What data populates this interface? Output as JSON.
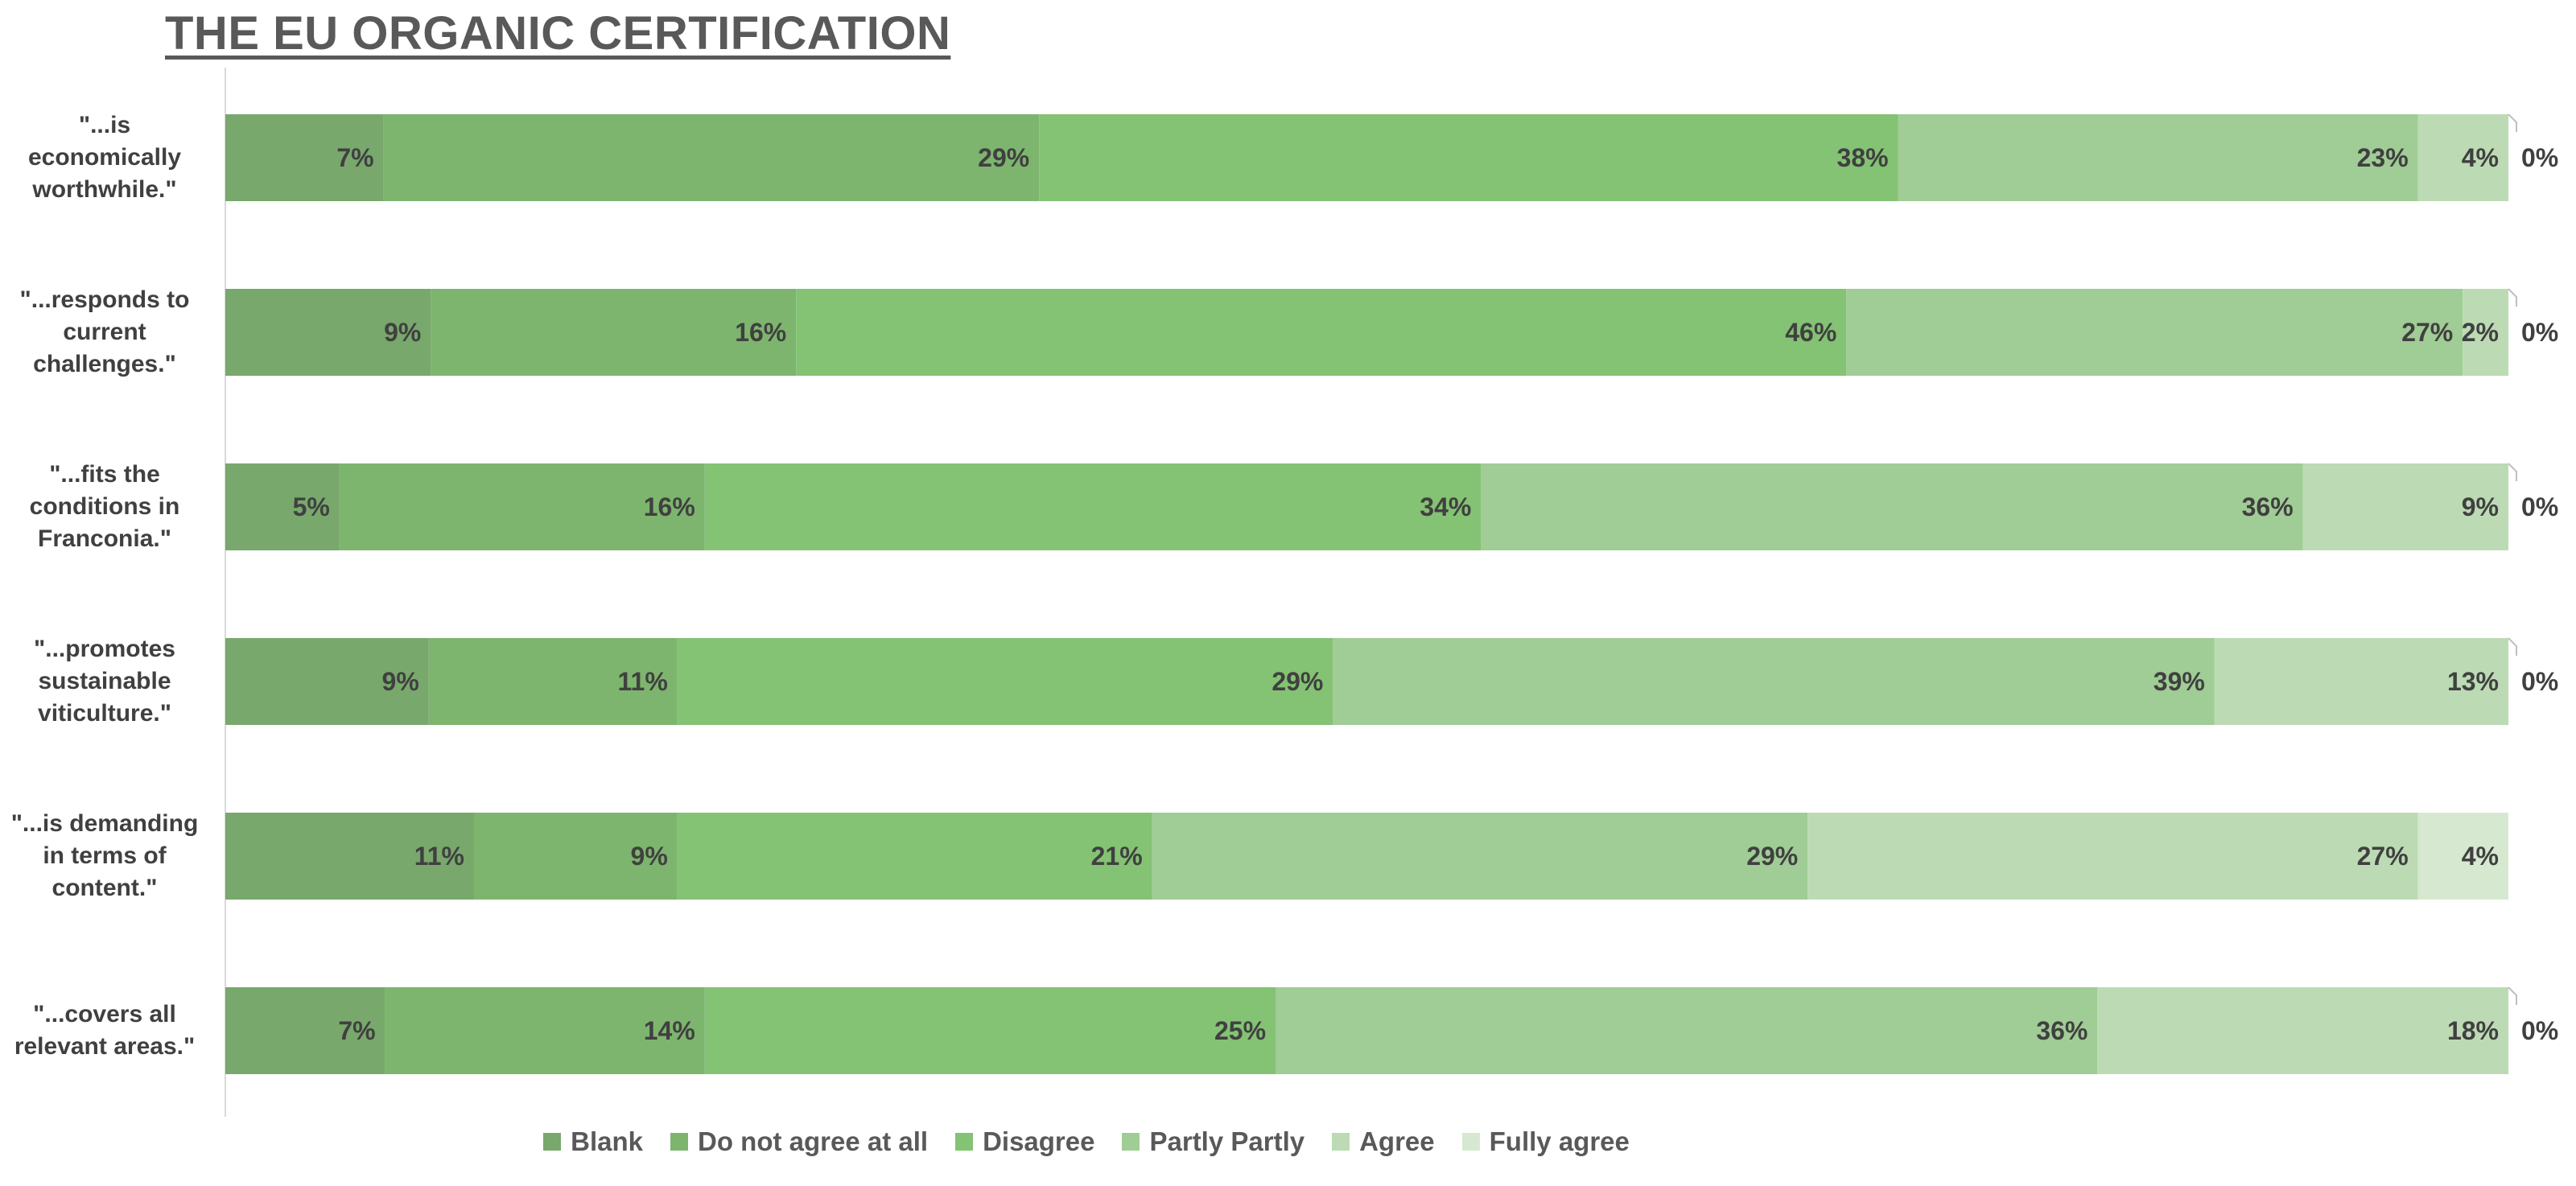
{
  "chart_data": {
    "type": "bar",
    "orientation": "horizontal",
    "stacked": "100%",
    "title": "THE EU ORGANIC CERTIFICATION",
    "categories": [
      "\"...is economically worthwhile.\"",
      "\"...responds to current challenges.\"",
      "\"...fits the conditions in Franconia.\"",
      "\"...promotes sustainable viticulture.\"",
      "\"...is demanding in terms of content.\"",
      "\"...covers all relevant areas.\""
    ],
    "series": [
      {
        "name": "Blank",
        "color": "#78a86c",
        "values": [
          7,
          9,
          5,
          9,
          11,
          7
        ]
      },
      {
        "name": "Do not agree at all",
        "color": "#7db56e",
        "values": [
          29,
          16,
          16,
          11,
          9,
          14
        ]
      },
      {
        "name": "Disagree",
        "color": "#84c274",
        "values": [
          38,
          46,
          34,
          29,
          21,
          25
        ]
      },
      {
        "name": "Partly Partly",
        "color": "#a0cc95",
        "values": [
          23,
          27,
          36,
          39,
          29,
          36
        ]
      },
      {
        "name": "Agree",
        "color": "#bcdbb4",
        "values": [
          4,
          2,
          9,
          13,
          27,
          18
        ]
      },
      {
        "name": "Fully agree",
        "color": "#d6e9d0",
        "values": [
          0,
          0,
          0,
          0,
          4,
          0
        ]
      }
    ],
    "legend_position": "bottom",
    "grid": false,
    "data_labels": true
  }
}
